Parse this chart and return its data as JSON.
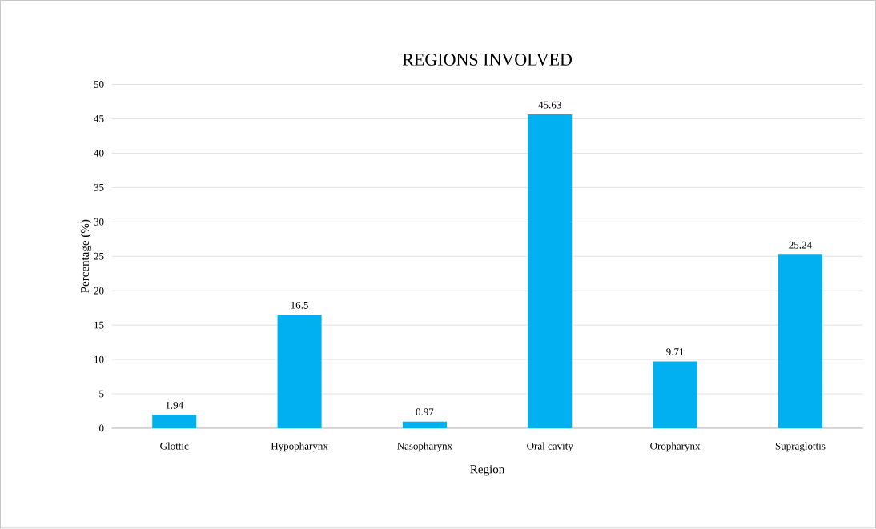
{
  "chart_data": {
    "type": "bar",
    "title": "REGIONS INVOLVED",
    "xlabel": "Region",
    "ylabel": "Percentage (%)",
    "categories": [
      "Glottic",
      "Hypopharynx",
      "Nasopharynx",
      "Oral cavity",
      "Oropharynx",
      "Supraglottis"
    ],
    "values": [
      1.94,
      16.5,
      0.97,
      45.63,
      9.71,
      25.24
    ],
    "color": "#00b0f0",
    "ylim": [
      0,
      50
    ],
    "yticks": [
      0,
      5,
      10,
      15,
      20,
      25,
      30,
      35,
      40,
      45,
      50
    ],
    "grid": "y",
    "data_labels": true
  }
}
